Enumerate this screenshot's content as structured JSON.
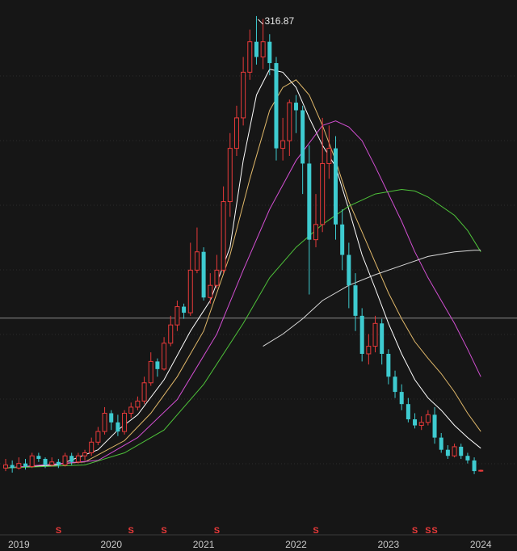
{
  "chart_data": {
    "type": "candlestick",
    "x_axis": {
      "ticks": [
        {
          "label": "2019",
          "index": 2
        },
        {
          "label": "2020",
          "index": 16
        },
        {
          "label": "2021",
          "index": 30
        },
        {
          "label": "2022",
          "index": 44
        },
        {
          "label": "2023",
          "index": 58
        },
        {
          "label": "2024",
          "index": 72
        }
      ]
    },
    "peak_label": {
      "text": "316.87",
      "index": 38,
      "value": 316.87
    },
    "reference_line": {
      "value": 118.5
    },
    "dividend_marks": [
      {
        "text": "S",
        "index": 8
      },
      {
        "text": "S",
        "index": 19
      },
      {
        "text": "S",
        "index": 24
      },
      {
        "text": "S",
        "index": 32
      },
      {
        "text": "S",
        "index": 47
      },
      {
        "text": "S",
        "index": 62
      },
      {
        "text": "S",
        "index": 64
      },
      {
        "text": "S",
        "index": 65
      }
    ],
    "ylim": [
      0,
      320
    ],
    "colors": {
      "up": "#e83a3a",
      "down": "#3ecbd0",
      "ma1": "#ffffff",
      "ma2": "#e0b86a",
      "ma3": "#d24fd2",
      "ma4": "#4ec23a",
      "ma5": "#d8d8d8"
    },
    "candles": [
      [
        20.0,
        22.0,
        26.0,
        18.0
      ],
      [
        22.0,
        20.0,
        25.0,
        17.0
      ],
      [
        20.0,
        23.0,
        27.0,
        19.0
      ],
      [
        23.0,
        21.0,
        26.0,
        19.0
      ],
      [
        21.0,
        28.0,
        30.0,
        20.0
      ],
      [
        28.0,
        26.0,
        30.0,
        24.0
      ],
      [
        26.0,
        22.0,
        27.0,
        20.0
      ],
      [
        22.0,
        24.0,
        27.0,
        21.0
      ],
      [
        24.0,
        22.0,
        26.0,
        20.0
      ],
      [
        22.0,
        28.0,
        30.0,
        21.0
      ],
      [
        28.0,
        24.0,
        30.0,
        22.0
      ],
      [
        24.0,
        28.0,
        30.0,
        23.0
      ],
      [
        28.0,
        30.0,
        32.0,
        25.0
      ],
      [
        30.0,
        37.0,
        40.0,
        28.0
      ],
      [
        37.0,
        44.0,
        47.0,
        35.0
      ],
      [
        44.0,
        56.0,
        60.0,
        42.0
      ],
      [
        56.0,
        50.0,
        58.0,
        45.0
      ],
      [
        50.0,
        44.0,
        55.0,
        41.0
      ],
      [
        44.0,
        56.0,
        58.0,
        42.0
      ],
      [
        56.0,
        60.0,
        63.0,
        53.0
      ],
      [
        60.0,
        64.0,
        67.0,
        58.0
      ],
      [
        64.0,
        76.0,
        80.0,
        62.0
      ],
      [
        76.0,
        90.0,
        96.0,
        74.0
      ],
      [
        90.0,
        85.0,
        92.0,
        80.0
      ],
      [
        85.0,
        102.0,
        106.0,
        84.0
      ],
      [
        102.0,
        114.0,
        120.0,
        100.0
      ],
      [
        114.0,
        126.0,
        130.0,
        110.0
      ],
      [
        126.0,
        122.0,
        128.0,
        118.0
      ],
      [
        122.0,
        150.0,
        168.0,
        120.0
      ],
      [
        150.0,
        162.0,
        178.0,
        148.0
      ],
      [
        162.0,
        132.0,
        165.0,
        130.0
      ],
      [
        132.0,
        140.0,
        148.0,
        128.0
      ],
      [
        140.0,
        150.0,
        160.0,
        138.0
      ],
      [
        150.0,
        195.0,
        205.0,
        148.0
      ],
      [
        195.0,
        230.0,
        240.0,
        185.0
      ],
      [
        230.0,
        250.0,
        258.0,
        225.0
      ],
      [
        250.0,
        280.0,
        290.0,
        245.0
      ],
      [
        280.0,
        300.0,
        308.0,
        275.0
      ],
      [
        300.0,
        290.0,
        316.87,
        285.0
      ],
      [
        290.0,
        300.0,
        315.0,
        282.0
      ],
      [
        300.0,
        286.0,
        305.0,
        278.0
      ],
      [
        286.0,
        230.0,
        290.0,
        222.0
      ],
      [
        230.0,
        235.0,
        250.0,
        222.0
      ],
      [
        235.0,
        260.0,
        262.0,
        225.0
      ],
      [
        260.0,
        255.0,
        265.0,
        240.0
      ],
      [
        255.0,
        220.0,
        258.0,
        200.0
      ],
      [
        220.0,
        170.0,
        232.0,
        134.0
      ],
      [
        170.0,
        180.0,
        200.0,
        165.0
      ],
      [
        180.0,
        220.0,
        250.0,
        175.0
      ],
      [
        220.0,
        230.0,
        245.0,
        210.0
      ],
      [
        230.0,
        180.0,
        238.0,
        170.0
      ],
      [
        180.0,
        160.0,
        190.0,
        150.0
      ],
      [
        160.0,
        140.0,
        168.0,
        125.0
      ],
      [
        140.0,
        120.0,
        148.0,
        110.0
      ],
      [
        120.0,
        95.0,
        125.0,
        90.0
      ],
      [
        95.0,
        100.0,
        108.0,
        88.0
      ],
      [
        100.0,
        115.0,
        120.0,
        96.0
      ],
      [
        115.0,
        95.0,
        118.0,
        88.0
      ],
      [
        95.0,
        80.0,
        98.0,
        75.0
      ],
      [
        80.0,
        70.0,
        84.0,
        66.0
      ],
      [
        70.0,
        62.0,
        75.0,
        58.0
      ],
      [
        62.0,
        52.0,
        66.0,
        50.0
      ],
      [
        52.0,
        48.0,
        56.0,
        46.0
      ],
      [
        48.0,
        50.0,
        54.0,
        45.0
      ],
      [
        50.0,
        55.0,
        58.0,
        48.0
      ],
      [
        55.0,
        40.0,
        60.0,
        36.0
      ],
      [
        40.0,
        32.0,
        43.0,
        30.0
      ],
      [
        32.0,
        28.0,
        35.0,
        26.0
      ],
      [
        28.0,
        34.0,
        36.0,
        27.0
      ],
      [
        34.0,
        28.0,
        36.0,
        26.0
      ],
      [
        28.0,
        25.0,
        30.0,
        23.0
      ],
      [
        25.0,
        18.0,
        27.0,
        16.0
      ],
      [
        18.0,
        18.5,
        19.0,
        17.5
      ]
    ],
    "moving_averages": [
      {
        "key": "ma1",
        "values": [
          {
            "i": 0,
            "v": 20
          },
          {
            "i": 8,
            "v": 22
          },
          {
            "i": 14,
            "v": 32
          },
          {
            "i": 17,
            "v": 45
          },
          {
            "i": 20,
            "v": 55
          },
          {
            "i": 24,
            "v": 78
          },
          {
            "i": 28,
            "v": 110
          },
          {
            "i": 31,
            "v": 130
          },
          {
            "i": 34,
            "v": 165
          },
          {
            "i": 36,
            "v": 222
          },
          {
            "i": 38,
            "v": 265
          },
          {
            "i": 40,
            "v": 282
          },
          {
            "i": 42,
            "v": 280
          },
          {
            "i": 44,
            "v": 270
          },
          {
            "i": 46,
            "v": 250
          },
          {
            "i": 48,
            "v": 232
          },
          {
            "i": 50,
            "v": 218
          },
          {
            "i": 52,
            "v": 190
          },
          {
            "i": 54,
            "v": 160
          },
          {
            "i": 56,
            "v": 138
          },
          {
            "i": 58,
            "v": 115
          },
          {
            "i": 60,
            "v": 95
          },
          {
            "i": 62,
            "v": 78
          },
          {
            "i": 64,
            "v": 66
          },
          {
            "i": 66,
            "v": 58
          },
          {
            "i": 68,
            "v": 48
          },
          {
            "i": 70,
            "v": 40
          },
          {
            "i": 72,
            "v": 33
          }
        ]
      },
      {
        "key": "ma2",
        "values": [
          {
            "i": 0,
            "v": 20
          },
          {
            "i": 12,
            "v": 24
          },
          {
            "i": 18,
            "v": 38
          },
          {
            "i": 22,
            "v": 56
          },
          {
            "i": 26,
            "v": 80
          },
          {
            "i": 30,
            "v": 110
          },
          {
            "i": 34,
            "v": 160
          },
          {
            "i": 37,
            "v": 210
          },
          {
            "i": 40,
            "v": 255
          },
          {
            "i": 42,
            "v": 270
          },
          {
            "i": 44,
            "v": 275
          },
          {
            "i": 46,
            "v": 265
          },
          {
            "i": 48,
            "v": 245
          },
          {
            "i": 50,
            "v": 222
          },
          {
            "i": 52,
            "v": 195
          },
          {
            "i": 54,
            "v": 175
          },
          {
            "i": 56,
            "v": 155
          },
          {
            "i": 58,
            "v": 135
          },
          {
            "i": 60,
            "v": 118
          },
          {
            "i": 62,
            "v": 103
          },
          {
            "i": 64,
            "v": 92
          },
          {
            "i": 66,
            "v": 82
          },
          {
            "i": 68,
            "v": 70
          },
          {
            "i": 70,
            "v": 56
          },
          {
            "i": 72,
            "v": 44
          }
        ]
      },
      {
        "key": "ma3",
        "values": [
          {
            "i": 0,
            "v": 20
          },
          {
            "i": 14,
            "v": 25
          },
          {
            "i": 20,
            "v": 40
          },
          {
            "i": 26,
            "v": 65
          },
          {
            "i": 32,
            "v": 108
          },
          {
            "i": 36,
            "v": 150
          },
          {
            "i": 40,
            "v": 190
          },
          {
            "i": 44,
            "v": 222
          },
          {
            "i": 48,
            "v": 245
          },
          {
            "i": 50,
            "v": 248
          },
          {
            "i": 52,
            "v": 244
          },
          {
            "i": 54,
            "v": 235
          },
          {
            "i": 56,
            "v": 218
          },
          {
            "i": 58,
            "v": 200
          },
          {
            "i": 60,
            "v": 182
          },
          {
            "i": 62,
            "v": 162
          },
          {
            "i": 64,
            "v": 145
          },
          {
            "i": 66,
            "v": 130
          },
          {
            "i": 68,
            "v": 115
          },
          {
            "i": 70,
            "v": 98
          },
          {
            "i": 72,
            "v": 80
          }
        ]
      },
      {
        "key": "ma4",
        "values": [
          {
            "i": 0,
            "v": 20
          },
          {
            "i": 12,
            "v": 22
          },
          {
            "i": 18,
            "v": 30
          },
          {
            "i": 24,
            "v": 45
          },
          {
            "i": 30,
            "v": 75
          },
          {
            "i": 36,
            "v": 115
          },
          {
            "i": 40,
            "v": 145
          },
          {
            "i": 44,
            "v": 165
          },
          {
            "i": 48,
            "v": 180
          },
          {
            "i": 52,
            "v": 192
          },
          {
            "i": 56,
            "v": 200
          },
          {
            "i": 60,
            "v": 203
          },
          {
            "i": 62,
            "v": 202
          },
          {
            "i": 64,
            "v": 198
          },
          {
            "i": 68,
            "v": 186
          },
          {
            "i": 70,
            "v": 176
          },
          {
            "i": 72,
            "v": 162
          }
        ]
      },
      {
        "key": "ma5",
        "values": [
          {
            "i": 39,
            "v": 100
          },
          {
            "i": 42,
            "v": 108
          },
          {
            "i": 45,
            "v": 118
          },
          {
            "i": 48,
            "v": 130
          },
          {
            "i": 52,
            "v": 140
          },
          {
            "i": 56,
            "v": 147
          },
          {
            "i": 60,
            "v": 153
          },
          {
            "i": 64,
            "v": 159
          },
          {
            "i": 68,
            "v": 162
          },
          {
            "i": 71,
            "v": 163
          },
          {
            "i": 72,
            "v": 163
          }
        ]
      }
    ]
  }
}
